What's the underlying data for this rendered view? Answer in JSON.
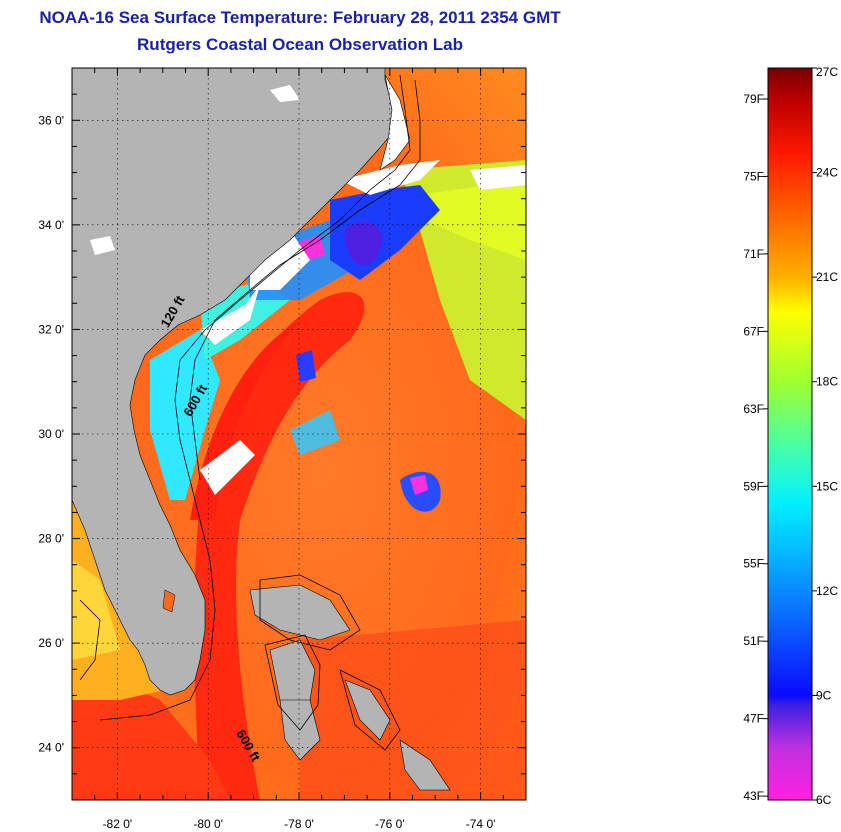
{
  "header": {
    "title": "NOAA-16 Sea Surface Temperature:  February 28, 2011 2354 GMT",
    "subtitle": "Rutgers Coastal Ocean Observation Lab"
  },
  "map": {
    "lon_range": [
      -83,
      -73
    ],
    "lat_range": [
      23,
      37
    ],
    "x_ticks": [
      {
        "value": -82,
        "label": "-82 0'"
      },
      {
        "value": -80,
        "label": "-80 0'"
      },
      {
        "value": -78,
        "label": "-78 0'"
      },
      {
        "value": -76,
        "label": "-76 0'"
      },
      {
        "value": -74,
        "label": "-74 0'"
      }
    ],
    "y_ticks": [
      {
        "value": 36,
        "label": "36 0'"
      },
      {
        "value": 34,
        "label": "34 0'"
      },
      {
        "value": 32,
        "label": "32 0'"
      },
      {
        "value": 30,
        "label": "30 0'"
      },
      {
        "value": 28,
        "label": "28 0'"
      },
      {
        "value": 26,
        "label": "26 0'"
      },
      {
        "value": 24,
        "label": "24 0'"
      }
    ],
    "grid": "dotted",
    "contour_labels": [
      {
        "text": "120 ft",
        "lon": -80.7,
        "lat": 32.3
      },
      {
        "text": "600 ft",
        "lon": -80.2,
        "lat": 30.6
      },
      {
        "text": "600 ft",
        "lon": -79.2,
        "lat": 24.0
      }
    ],
    "colors": {
      "land": "#b4b4b4",
      "cloud": "#ffffff",
      "gulf_stream": "#ff2a10",
      "warm_water": "#ff6a1a",
      "shelf_water": "#22e8ff",
      "cold_water": "#1a3cff"
    }
  },
  "colorbar": {
    "min_c": 6,
    "max_c": 27,
    "celsius_labels": [
      {
        "value": 27,
        "label": "27C"
      },
      {
        "value": 24,
        "label": "24C"
      },
      {
        "value": 21,
        "label": "21C"
      },
      {
        "value": 18,
        "label": "18C"
      },
      {
        "value": 15,
        "label": "15C"
      },
      {
        "value": 12,
        "label": "12C"
      },
      {
        "value": 9,
        "label": "9C"
      },
      {
        "value": 6,
        "label": "6C"
      }
    ],
    "fahrenheit_labels": [
      {
        "value": 79,
        "label": "79F"
      },
      {
        "value": 75,
        "label": "75F"
      },
      {
        "value": 71,
        "label": "71F"
      },
      {
        "value": 67,
        "label": "67F"
      },
      {
        "value": 63,
        "label": "63F"
      },
      {
        "value": 59,
        "label": "59F"
      },
      {
        "value": 55,
        "label": "55F"
      },
      {
        "value": 51,
        "label": "51F"
      },
      {
        "value": 47,
        "label": "47F"
      },
      {
        "value": 43,
        "label": "43F"
      }
    ],
    "stops": [
      {
        "value": 6,
        "color": "#ff20e0"
      },
      {
        "value": 7.5,
        "color": "#c030e0"
      },
      {
        "value": 8.7,
        "color": "#4020e0"
      },
      {
        "value": 9,
        "color": "#0a0aff"
      },
      {
        "value": 12,
        "color": "#0a8aff"
      },
      {
        "value": 14.5,
        "color": "#00f0ff"
      },
      {
        "value": 16,
        "color": "#40ffb0"
      },
      {
        "value": 18,
        "color": "#a0ff30"
      },
      {
        "value": 20,
        "color": "#ffff00"
      },
      {
        "value": 21,
        "color": "#ffb000"
      },
      {
        "value": 23,
        "color": "#ff5a00"
      },
      {
        "value": 24.5,
        "color": "#ff1a00"
      },
      {
        "value": 26,
        "color": "#c00000"
      },
      {
        "value": 27,
        "color": "#780000"
      }
    ]
  }
}
